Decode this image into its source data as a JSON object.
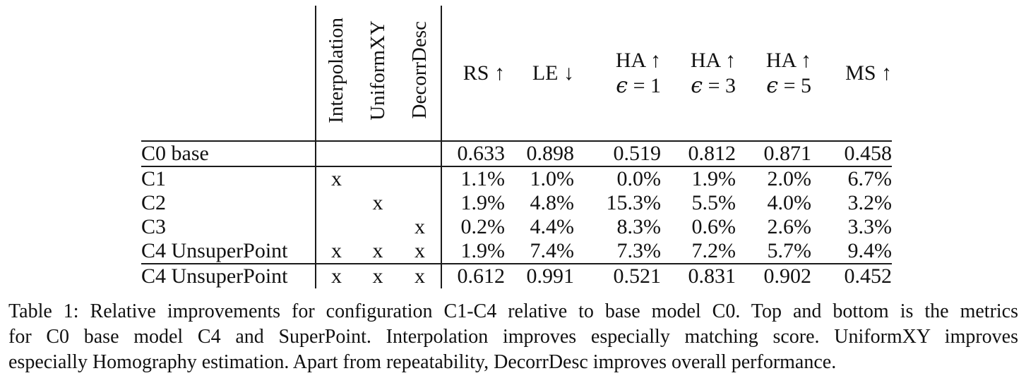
{
  "colors": {
    "background": "#ffffff",
    "text": "#111111",
    "rule": "#1a1a1a"
  },
  "table": {
    "rotated_headers": [
      "Interpolation",
      "UniformXY",
      "DecorrDesc"
    ],
    "metric_headers": [
      {
        "line1": "",
        "epsilon": "",
        "line2": "RS ↑"
      },
      {
        "line1": "",
        "epsilon": "",
        "line2": "LE ↓"
      },
      {
        "line1": "HA ↑",
        "epsilon": "ϵ",
        "line2": " = 1"
      },
      {
        "line1": "HA ↑",
        "epsilon": "ϵ",
        "line2": " = 3"
      },
      {
        "line1": "HA ↑",
        "epsilon": "ϵ",
        "line2": " = 5"
      },
      {
        "line1": "",
        "epsilon": "",
        "line2": "MS ↑"
      }
    ],
    "rows": [
      {
        "label": "C0 base",
        "marks": [
          "",
          "",
          ""
        ],
        "values": [
          "0.633",
          "0.898",
          "0.519",
          "0.812",
          "0.871",
          "0.458"
        ]
      },
      {
        "label": "C1",
        "marks": [
          "x",
          "",
          ""
        ],
        "values": [
          "1.1%",
          "1.0%",
          "0.0%",
          "1.9%",
          "2.0%",
          "6.7%"
        ]
      },
      {
        "label": "C2",
        "marks": [
          "",
          "x",
          ""
        ],
        "values": [
          "1.9%",
          "4.8%",
          "15.3%",
          "5.5%",
          "4.0%",
          "3.2%"
        ]
      },
      {
        "label": "C3",
        "marks": [
          "",
          "",
          "x"
        ],
        "values": [
          "0.2%",
          "4.4%",
          "8.3%",
          "0.6%",
          "2.6%",
          "3.3%"
        ]
      },
      {
        "label": "C4 UnsuperPoint",
        "marks": [
          "x",
          "x",
          "x"
        ],
        "values": [
          "1.9%",
          "7.4%",
          "7.3%",
          "7.2%",
          "5.7%",
          "9.4%"
        ]
      },
      {
        "label": "C4 UnsuperPoint",
        "marks": [
          "x",
          "x",
          "x"
        ],
        "values": [
          "0.612",
          "0.991",
          "0.521",
          "0.831",
          "0.902",
          "0.452"
        ]
      }
    ]
  },
  "caption": {
    "lines": [
      "Table 1: Relative improvements for configuration C1-C4 relative to base model C0. Top and bottom is the metrics",
      "for C0 base model C4 and SuperPoint. Interpolation improves especially matching score. UniformXY improves",
      "especially Homography estimation. Apart from repeatability, DecorrDesc improves overall performance."
    ]
  }
}
